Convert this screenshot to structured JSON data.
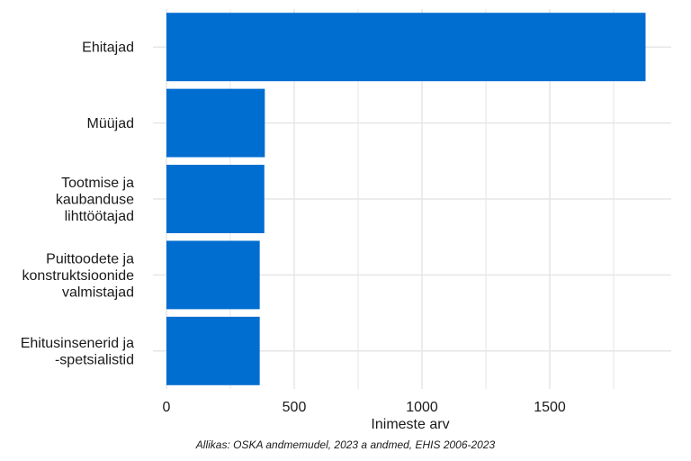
{
  "chart_data": {
    "type": "bar",
    "orientation": "horizontal",
    "categories": [
      [
        "Ehitajad"
      ],
      [
        "Müüjad"
      ],
      [
        "Tootmise ja",
        "kaubanduse",
        "lihttöötajad"
      ],
      [
        "Puittoodete ja",
        "konstruktsioonide",
        "valmistajad"
      ],
      [
        "Ehitusinsenerid ja",
        "-spetsialistid"
      ]
    ],
    "values": [
      1875,
      385,
      383,
      365,
      365
    ],
    "xlabel": "Inimeste arv",
    "xlim": [
      0,
      1975
    ],
    "xticks": [
      0,
      500,
      1000,
      1500
    ],
    "xtick_labels": [
      "0",
      "500",
      "1000",
      "1500"
    ],
    "grid": true,
    "colors": {
      "bar": "#006dd0",
      "grid": "#e6e6e6"
    }
  },
  "caption": "Allikas: OSKA andmemudel, 2023 a andmed, EHIS 2006-2023"
}
